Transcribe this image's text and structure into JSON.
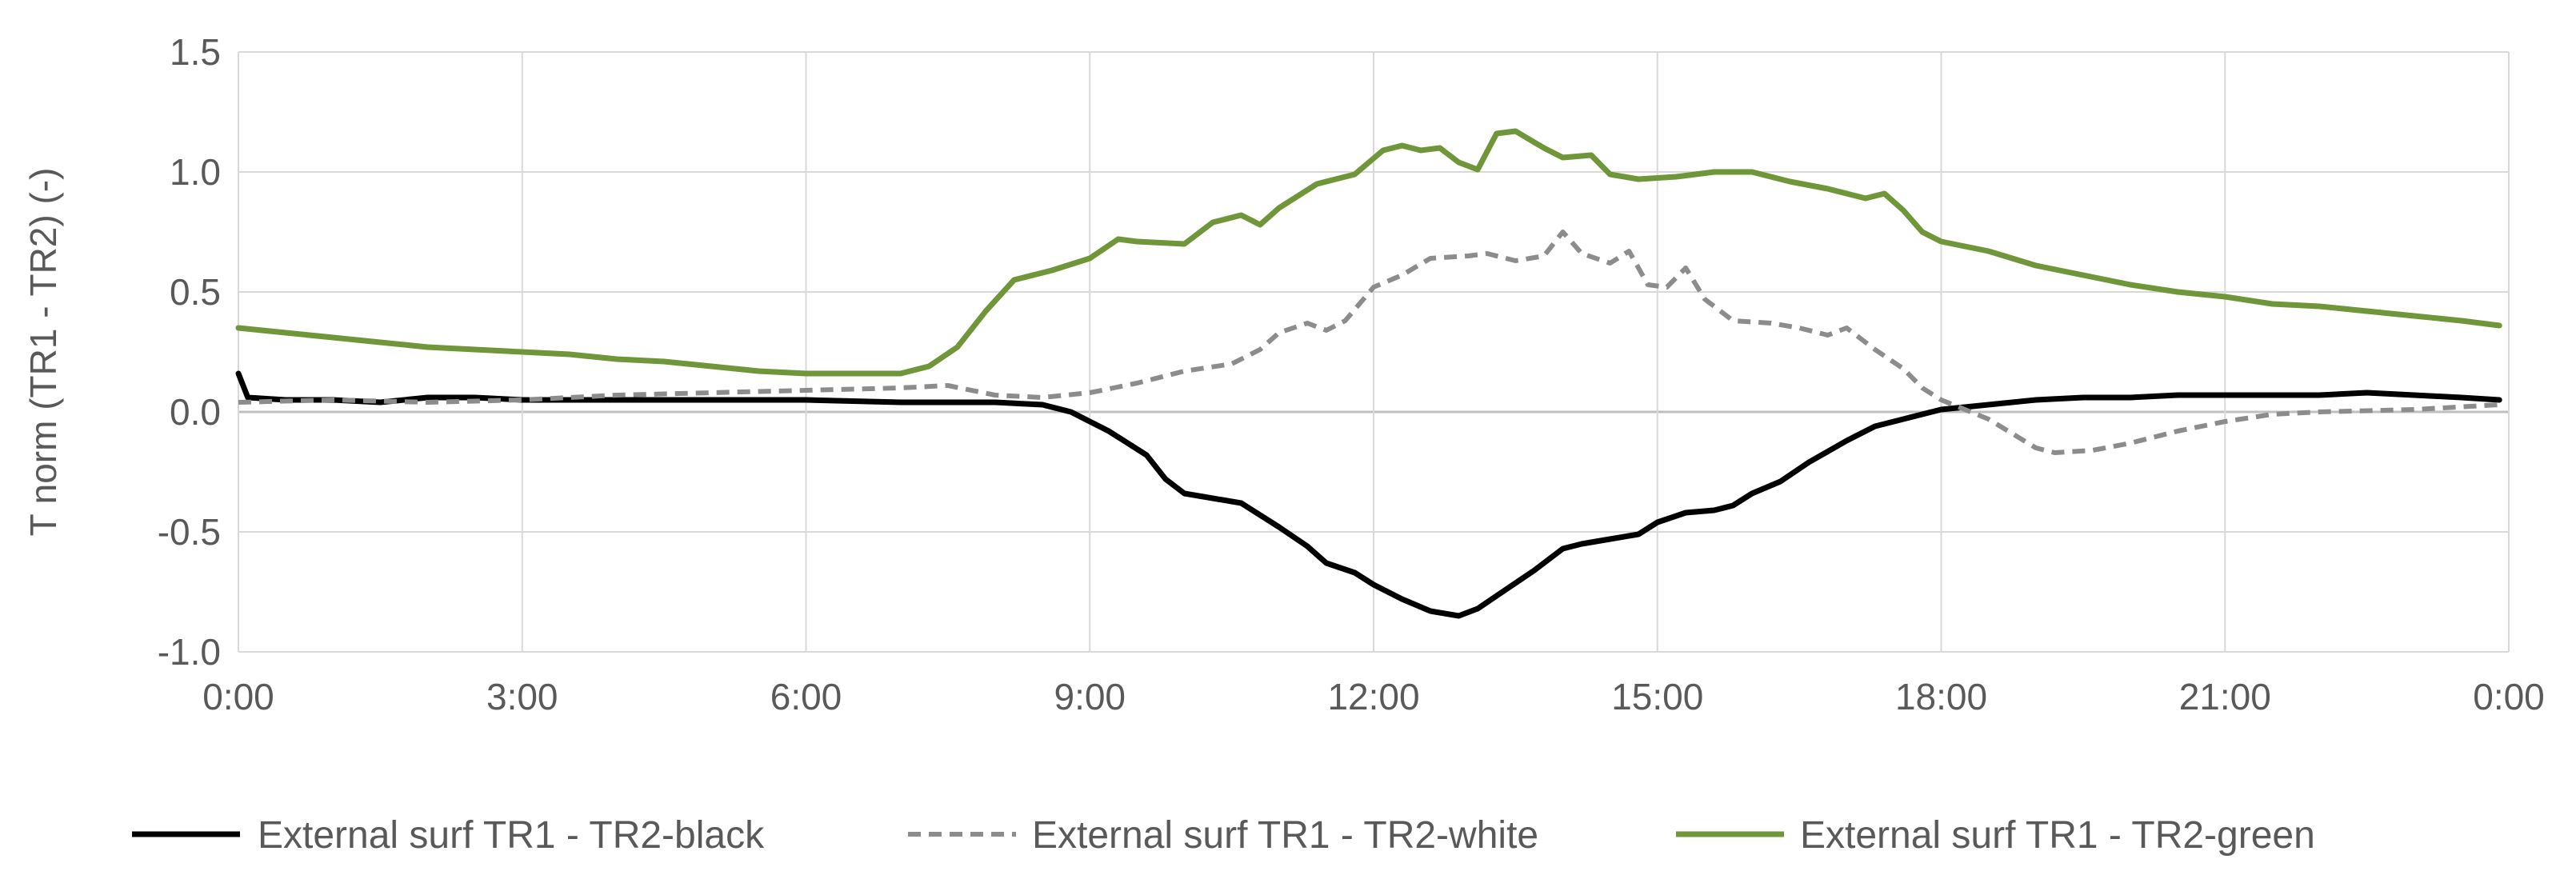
{
  "chart_data": {
    "type": "line",
    "title": "",
    "xlabel": "",
    "ylabel": "T norm (TR1 - TR2) (-)",
    "xlim": [
      0,
      24
    ],
    "ylim": [
      -1.0,
      1.5
    ],
    "x_ticks": [
      0,
      3,
      6,
      9,
      12,
      15,
      18,
      21,
      24
    ],
    "x_tick_labels": [
      "0:00",
      "3:00",
      "6:00",
      "9:00",
      "12:00",
      "15:00",
      "18:00",
      "21:00",
      "0:00"
    ],
    "y_ticks": [
      -1.0,
      -0.5,
      0.0,
      0.5,
      1.0,
      1.5
    ],
    "y_tick_labels": [
      "-1.0",
      "-0.5",
      "0.0",
      "0.5",
      "1.0",
      "1.5"
    ],
    "grid": true,
    "legend_position": "bottom",
    "series": [
      {
        "name": "External surf TR1 - TR2-black",
        "color": "#000000",
        "dash": "solid",
        "points": [
          [
            0,
            0.16
          ],
          [
            0.1,
            0.06
          ],
          [
            0.5,
            0.05
          ],
          [
            1,
            0.05
          ],
          [
            1.5,
            0.04
          ],
          [
            2,
            0.06
          ],
          [
            2.5,
            0.06
          ],
          [
            3,
            0.05
          ],
          [
            4,
            0.05
          ],
          [
            5,
            0.05
          ],
          [
            6,
            0.05
          ],
          [
            7,
            0.04
          ],
          [
            8,
            0.04
          ],
          [
            8.5,
            0.03
          ],
          [
            8.8,
            0.0
          ],
          [
            9.2,
            -0.08
          ],
          [
            9.6,
            -0.18
          ],
          [
            9.8,
            -0.28
          ],
          [
            10,
            -0.34
          ],
          [
            10.3,
            -0.36
          ],
          [
            10.6,
            -0.38
          ],
          [
            11,
            -0.48
          ],
          [
            11.3,
            -0.56
          ],
          [
            11.5,
            -0.63
          ],
          [
            11.8,
            -0.67
          ],
          [
            12,
            -0.72
          ],
          [
            12.3,
            -0.78
          ],
          [
            12.6,
            -0.83
          ],
          [
            12.9,
            -0.85
          ],
          [
            13.1,
            -0.82
          ],
          [
            13.4,
            -0.74
          ],
          [
            13.7,
            -0.66
          ],
          [
            14,
            -0.57
          ],
          [
            14.2,
            -0.55
          ],
          [
            14.5,
            -0.53
          ],
          [
            14.8,
            -0.51
          ],
          [
            15,
            -0.46
          ],
          [
            15.3,
            -0.42
          ],
          [
            15.6,
            -0.41
          ],
          [
            15.8,
            -0.39
          ],
          [
            16,
            -0.34
          ],
          [
            16.3,
            -0.29
          ],
          [
            16.6,
            -0.21
          ],
          [
            17,
            -0.12
          ],
          [
            17.3,
            -0.06
          ],
          [
            17.6,
            -0.03
          ],
          [
            18,
            0.01
          ],
          [
            18.5,
            0.03
          ],
          [
            19,
            0.05
          ],
          [
            19.5,
            0.06
          ],
          [
            20,
            0.06
          ],
          [
            20.5,
            0.07
          ],
          [
            21,
            0.07
          ],
          [
            21.5,
            0.07
          ],
          [
            22,
            0.07
          ],
          [
            22.5,
            0.08
          ],
          [
            23,
            0.07
          ],
          [
            23.5,
            0.06
          ],
          [
            23.9,
            0.05
          ]
        ]
      },
      {
        "name": "External surf  TR1 - TR2-white",
        "color": "#8c8c8c",
        "dash": "dashed",
        "points": [
          [
            0,
            0.04
          ],
          [
            1,
            0.05
          ],
          [
            2,
            0.04
          ],
          [
            3,
            0.05
          ],
          [
            4,
            0.07
          ],
          [
            5,
            0.08
          ],
          [
            6,
            0.09
          ],
          [
            7,
            0.1
          ],
          [
            7.5,
            0.11
          ],
          [
            8,
            0.07
          ],
          [
            8.5,
            0.06
          ],
          [
            9,
            0.08
          ],
          [
            9.5,
            0.12
          ],
          [
            10,
            0.17
          ],
          [
            10.5,
            0.2
          ],
          [
            10.8,
            0.26
          ],
          [
            11,
            0.33
          ],
          [
            11.3,
            0.37
          ],
          [
            11.5,
            0.34
          ],
          [
            11.7,
            0.38
          ],
          [
            12,
            0.52
          ],
          [
            12.3,
            0.57
          ],
          [
            12.6,
            0.64
          ],
          [
            13,
            0.65
          ],
          [
            13.2,
            0.66
          ],
          [
            13.5,
            0.63
          ],
          [
            13.8,
            0.65
          ],
          [
            14,
            0.75
          ],
          [
            14.2,
            0.66
          ],
          [
            14.5,
            0.62
          ],
          [
            14.7,
            0.67
          ],
          [
            14.9,
            0.53
          ],
          [
            15.1,
            0.52
          ],
          [
            15.3,
            0.6
          ],
          [
            15.5,
            0.47
          ],
          [
            15.8,
            0.38
          ],
          [
            16.2,
            0.37
          ],
          [
            16.5,
            0.35
          ],
          [
            16.8,
            0.32
          ],
          [
            17,
            0.35
          ],
          [
            17.3,
            0.26
          ],
          [
            17.6,
            0.18
          ],
          [
            17.8,
            0.1
          ],
          [
            18,
            0.05
          ],
          [
            18.5,
            -0.03
          ],
          [
            19,
            -0.15
          ],
          [
            19.2,
            -0.17
          ],
          [
            19.6,
            -0.16
          ],
          [
            20,
            -0.13
          ],
          [
            20.5,
            -0.08
          ],
          [
            21,
            -0.04
          ],
          [
            21.5,
            -0.01
          ],
          [
            22,
            0.0
          ],
          [
            23,
            0.01
          ],
          [
            23.9,
            0.03
          ]
        ]
      },
      {
        "name": "External surf  TR1 - TR2-green",
        "color": "#70963a",
        "dash": "solid",
        "points": [
          [
            0,
            0.35
          ],
          [
            0.5,
            0.33
          ],
          [
            1,
            0.31
          ],
          [
            1.5,
            0.29
          ],
          [
            2,
            0.27
          ],
          [
            2.5,
            0.26
          ],
          [
            3,
            0.25
          ],
          [
            3.5,
            0.24
          ],
          [
            4,
            0.22
          ],
          [
            4.5,
            0.21
          ],
          [
            5,
            0.19
          ],
          [
            5.5,
            0.17
          ],
          [
            6,
            0.16
          ],
          [
            6.5,
            0.16
          ],
          [
            7,
            0.16
          ],
          [
            7.3,
            0.19
          ],
          [
            7.6,
            0.27
          ],
          [
            7.9,
            0.42
          ],
          [
            8.2,
            0.55
          ],
          [
            8.6,
            0.59
          ],
          [
            9,
            0.64
          ],
          [
            9.3,
            0.72
          ],
          [
            9.5,
            0.71
          ],
          [
            10,
            0.7
          ],
          [
            10.3,
            0.79
          ],
          [
            10.6,
            0.82
          ],
          [
            10.8,
            0.78
          ],
          [
            11,
            0.85
          ],
          [
            11.4,
            0.95
          ],
          [
            11.8,
            0.99
          ],
          [
            12.1,
            1.09
          ],
          [
            12.3,
            1.11
          ],
          [
            12.5,
            1.09
          ],
          [
            12.7,
            1.1
          ],
          [
            12.9,
            1.04
          ],
          [
            13.1,
            1.01
          ],
          [
            13.3,
            1.16
          ],
          [
            13.5,
            1.17
          ],
          [
            13.8,
            1.1
          ],
          [
            14,
            1.06
          ],
          [
            14.3,
            1.07
          ],
          [
            14.5,
            0.99
          ],
          [
            14.8,
            0.97
          ],
          [
            15.2,
            0.98
          ],
          [
            15.6,
            1.0
          ],
          [
            16,
            1.0
          ],
          [
            16.4,
            0.96
          ],
          [
            16.8,
            0.93
          ],
          [
            17.2,
            0.89
          ],
          [
            17.4,
            0.91
          ],
          [
            17.6,
            0.84
          ],
          [
            17.8,
            0.75
          ],
          [
            18,
            0.71
          ],
          [
            18.5,
            0.67
          ],
          [
            19,
            0.61
          ],
          [
            19.5,
            0.57
          ],
          [
            20,
            0.53
          ],
          [
            20.5,
            0.5
          ],
          [
            21,
            0.48
          ],
          [
            21.5,
            0.45
          ],
          [
            22,
            0.44
          ],
          [
            22.5,
            0.42
          ],
          [
            23,
            0.4
          ],
          [
            23.5,
            0.38
          ],
          [
            23.9,
            0.36
          ]
        ]
      }
    ]
  }
}
